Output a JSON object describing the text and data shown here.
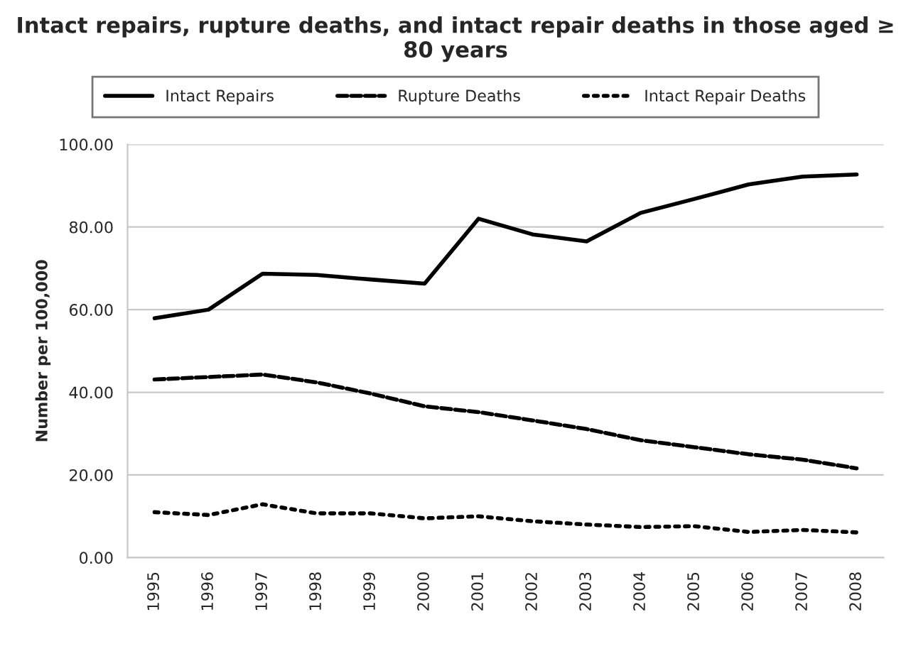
{
  "chart_data": {
    "type": "line",
    "title": "Intact repairs, rupture deaths, and intact repair deaths in those aged ≥ 80 years",
    "ylabel": "Number per 100,000",
    "categories": [
      "1995",
      "1996",
      "1997",
      "1998",
      "1999",
      "2000",
      "2001",
      "2002",
      "2003",
      "2004",
      "2005",
      "2006",
      "2007",
      "2008"
    ],
    "series": [
      {
        "name": "Intact Repairs",
        "color": "#000000",
        "line_style": "solid",
        "values": [
          57.9,
          60.0,
          68.7,
          68.4,
          67.3,
          66.3,
          82.0,
          78.2,
          76.5,
          83.4,
          86.8,
          90.3,
          92.2,
          92.7
        ]
      },
      {
        "name": "Rupture Deaths",
        "color": "#000000",
        "line_style": "dashed",
        "values": [
          43.1,
          43.7,
          44.3,
          42.4,
          39.7,
          36.6,
          35.2,
          33.2,
          31.1,
          28.4,
          26.7,
          25.0,
          23.7,
          21.6
        ]
      },
      {
        "name": "Intact Repair Deaths",
        "color": "#000000",
        "line_style": "dotted",
        "values": [
          11.0,
          10.3,
          12.9,
          10.7,
          10.7,
          9.5,
          10.0,
          8.8,
          8.0,
          7.4,
          7.6,
          6.2,
          6.7,
          6.1
        ]
      }
    ],
    "ylim": [
      0,
      100
    ],
    "yticks": [
      {
        "value": 0,
        "label": "0.00"
      },
      {
        "value": 20,
        "label": "20.00"
      },
      {
        "value": 40,
        "label": "40.00"
      },
      {
        "value": 60,
        "label": "60.00"
      },
      {
        "value": 80,
        "label": "80.00"
      },
      {
        "value": 100,
        "label": "100.00"
      }
    ],
    "grid": "y",
    "legend": "top"
  }
}
